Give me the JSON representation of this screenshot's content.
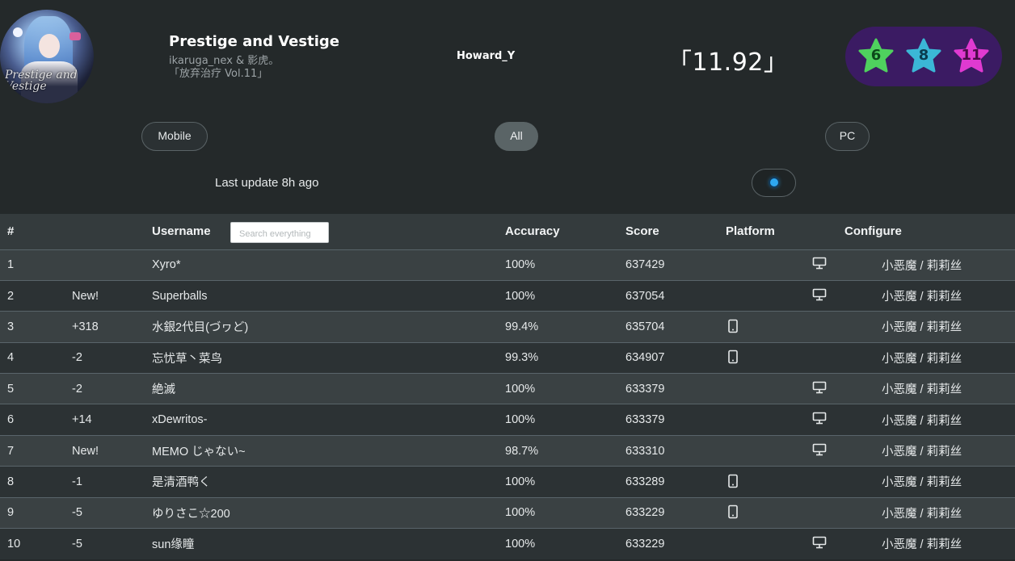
{
  "song": {
    "title": "Prestige and Vestige",
    "artist": "ikaruga_nex & 影虎。",
    "pack": "「放弃治疗 Vol.11」",
    "jacket_text": "Prestige and Vestige"
  },
  "player": {
    "name": "Howard_Y"
  },
  "rating": "「11.92」",
  "difficulties": [
    {
      "level": "6",
      "color": "#4fd15e",
      "text_color": "#0c4a1a"
    },
    {
      "level": "8",
      "color": "#3bb7d6",
      "text_color": "#0a3d4e"
    },
    {
      "level": "11",
      "color": "#e03ad1",
      "text_color": "#4a0b46"
    }
  ],
  "filters": {
    "mobile": "Mobile",
    "all": "All",
    "pc": "PC",
    "active": "All"
  },
  "last_update": "Last update 8h ago",
  "table": {
    "headers": {
      "rank": "#",
      "username": "Username",
      "accuracy": "Accuracy",
      "score": "Score",
      "platform": "Platform",
      "configure": "Configure"
    },
    "search_placeholder": "Search everything",
    "rows": [
      {
        "rank": "1",
        "change": "",
        "change_type": "none",
        "user": "Xyro*",
        "accuracy": "100%",
        "score": "637429",
        "platform": "pc",
        "config": "小恶魔 / 莉莉丝"
      },
      {
        "rank": "2",
        "change": "New!",
        "change_type": "new",
        "user": "Superballs",
        "accuracy": "100%",
        "score": "637054",
        "platform": "pc",
        "config": "小恶魔 / 莉莉丝"
      },
      {
        "rank": "3",
        "change": "+318",
        "change_type": "up",
        "user": "水銀2代目(づヮど)",
        "accuracy": "99.4%",
        "score": "635704",
        "platform": "mobile",
        "config": "小恶魔 / 莉莉丝"
      },
      {
        "rank": "4",
        "change": "-2",
        "change_type": "down",
        "user": "忘忧草丶菜鸟",
        "accuracy": "99.3%",
        "score": "634907",
        "platform": "mobile",
        "config": "小恶魔 / 莉莉丝"
      },
      {
        "rank": "5",
        "change": "-2",
        "change_type": "down",
        "user": "絶滅",
        "accuracy": "100%",
        "score": "633379",
        "platform": "pc",
        "config": "小恶魔 / 莉莉丝"
      },
      {
        "rank": "6",
        "change": "+14",
        "change_type": "up",
        "user": "xDewritos-",
        "accuracy": "100%",
        "score": "633379",
        "platform": "pc",
        "config": "小恶魔 / 莉莉丝"
      },
      {
        "rank": "7",
        "change": "New!",
        "change_type": "new",
        "user": "MEMO じゃない~",
        "accuracy": "98.7%",
        "score": "633310",
        "platform": "pc",
        "config": "小恶魔 / 莉莉丝"
      },
      {
        "rank": "8",
        "change": "-1",
        "change_type": "down",
        "user": "是清酒鸭く",
        "accuracy": "100%",
        "score": "633289",
        "platform": "mobile",
        "config": "小恶魔 / 莉莉丝"
      },
      {
        "rank": "9",
        "change": "-5",
        "change_type": "down",
        "user": "ゆりさこ☆200",
        "accuracy": "100%",
        "score": "633229",
        "platform": "mobile",
        "config": "小恶魔 / 莉莉丝"
      },
      {
        "rank": "10",
        "change": "-5",
        "change_type": "down",
        "user": "sun缘瞳",
        "accuracy": "100%",
        "score": "633229",
        "platform": "pc",
        "config": "小恶魔 / 莉莉丝"
      }
    ]
  }
}
